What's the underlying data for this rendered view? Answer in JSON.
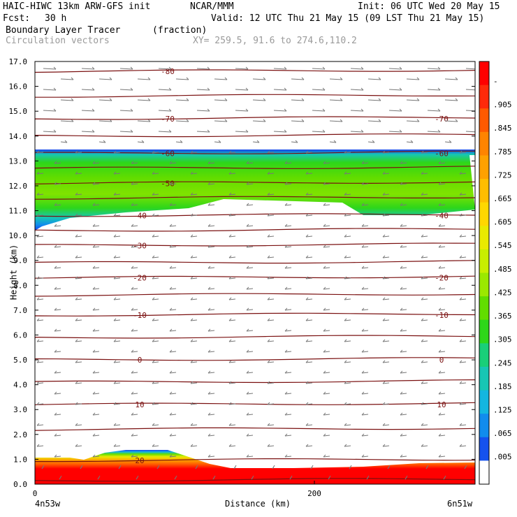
{
  "header": {
    "title": "HAIC-HIWC 13km ARW-GFS init",
    "org": "NCAR/MMM",
    "init": "Init: 06 UTC Wed 20 May 15",
    "fcst_label": "Fcst:",
    "fcst_value": "30 h",
    "valid": "Valid: 12 UTC Thu 21 May 15 (09 LST Thu 21 May 15)",
    "field_name": "Boundary Layer Tracer",
    "field_units": "(fraction)",
    "vector_label": "Circulation vectors",
    "xy_range": "XY= 259.5, 91.6 to 274.6,110.2"
  },
  "chart_data": {
    "type": "heatmap",
    "ylabel": "Height (km)",
    "xlabel": "Distance (km)",
    "xlim": [
      0,
      315
    ],
    "ylim": [
      0,
      17
    ],
    "y_ticks": [
      "0.0",
      "1.0",
      "2.0",
      "3.0",
      "4.0",
      "5.0",
      "6.0",
      "7.0",
      "8.0",
      "9.0",
      "10.0",
      "11.0",
      "12.0",
      "13.0",
      "14.0",
      "15.0",
      "16.0",
      "17.0"
    ],
    "x_ticks": [
      {
        "value": 0,
        "label": "0"
      },
      {
        "value": 200,
        "label": "200"
      }
    ],
    "x_endpoints": {
      "left": "4n53w",
      "right": "6n51w"
    },
    "colorbar_labels": [
      "-",
      ".905",
      ".845",
      ".785",
      ".725",
      ".665",
      ".605",
      ".545",
      ".485",
      ".425",
      ".365",
      ".305",
      ".245",
      ".185",
      ".125",
      ".065",
      ".005"
    ],
    "colorbar_colors": [
      "#ff0000",
      "#ff2a0a",
      "#ff5a00",
      "#ff8400",
      "#ffa100",
      "#ffbd00",
      "#ffd700",
      "#e9ea00",
      "#c8ee00",
      "#9be800",
      "#62dd00",
      "#2ed61a",
      "#19cf79",
      "#17c6b4",
      "#13b6e0",
      "#118ced",
      "#1552ee",
      "#ffffff"
    ],
    "temperature_contours": [
      {
        "height": 0.15,
        "label": "",
        "left_label": ""
      },
      {
        "height": 0.95,
        "label": "20",
        "left_label": ""
      },
      {
        "height": 2.2,
        "label": "",
        "left_label": ""
      },
      {
        "height": 3.2,
        "label": "10",
        "left_label": "10"
      },
      {
        "height": 4.1,
        "label": "",
        "left_label": ""
      },
      {
        "height": 5.0,
        "label": "0",
        "left_label": "0"
      },
      {
        "height": 5.9,
        "label": "",
        "left_label": ""
      },
      {
        "height": 6.8,
        "label": "-10",
        "left_label": "-10"
      },
      {
        "height": 7.6,
        "label": "",
        "left_label": ""
      },
      {
        "height": 8.3,
        "label": "-20",
        "left_label": "-20"
      },
      {
        "height": 8.9,
        "label": "",
        "left_label": ""
      },
      {
        "height": 9.6,
        "label": "-30",
        "left_label": ""
      },
      {
        "height": 10.2,
        "label": "",
        "left_label": ""
      },
      {
        "height": 10.8,
        "label": "-40",
        "left_label": "-40"
      },
      {
        "height": 11.5,
        "label": "",
        "left_label": ""
      },
      {
        "height": 12.1,
        "label": "-50",
        "left_label": ""
      },
      {
        "height": 12.7,
        "label": "",
        "left_label": ""
      },
      {
        "height": 13.3,
        "label": "-60",
        "left_label": "-60"
      },
      {
        "height": 14.0,
        "label": "",
        "left_label": ""
      },
      {
        "height": 14.7,
        "label": "-70",
        "left_label": "-70"
      },
      {
        "height": 15.6,
        "label": "",
        "left_label": ""
      },
      {
        "height": 16.6,
        "label": "-80",
        "left_label": ""
      }
    ],
    "tracer_upper_layer": {
      "bottom_km": 11.1,
      "top_km": 13.4,
      "core_value": 0.305
    },
    "tracer_boundary_layer": {
      "top_km": 1.0,
      "core_value": 0.905
    }
  }
}
